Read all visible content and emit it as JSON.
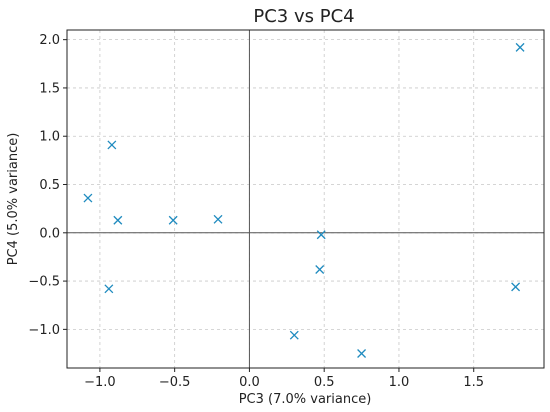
{
  "chart_data": {
    "type": "scatter",
    "title": "PC3 vs PC4",
    "xlabel": "PC3 (7.0% variance)",
    "ylabel": "PC4 (5.0% variance)",
    "xlim": [
      -1.22,
      1.97
    ],
    "ylim": [
      -1.4,
      2.1
    ],
    "xticks": [
      -1.0,
      -0.5,
      0.0,
      0.5,
      1.0,
      1.5
    ],
    "xtick_labels": [
      "−1.0",
      "−0.5",
      "0.0",
      "0.5",
      "1.0",
      "1.5"
    ],
    "yticks": [
      -1.0,
      -0.5,
      0.0,
      0.5,
      1.0,
      1.5,
      2.0
    ],
    "ytick_labels": [
      "−1.0",
      "−0.5",
      "0.0",
      "0.5",
      "1.0",
      "1.5",
      "2.0"
    ],
    "grid": true,
    "marker": "x",
    "color": "#1f8bbf",
    "points": [
      {
        "x": -1.08,
        "y": 0.36
      },
      {
        "x": -0.92,
        "y": 0.91
      },
      {
        "x": -0.88,
        "y": 0.13
      },
      {
        "x": -0.94,
        "y": -0.58
      },
      {
        "x": -0.51,
        "y": 0.13
      },
      {
        "x": -0.21,
        "y": 0.14
      },
      {
        "x": 0.48,
        "y": -0.02
      },
      {
        "x": 0.47,
        "y": -0.38
      },
      {
        "x": 0.3,
        "y": -1.06
      },
      {
        "x": 0.75,
        "y": -1.25
      },
      {
        "x": 1.78,
        "y": -0.56
      },
      {
        "x": 1.81,
        "y": 1.92
      }
    ]
  }
}
